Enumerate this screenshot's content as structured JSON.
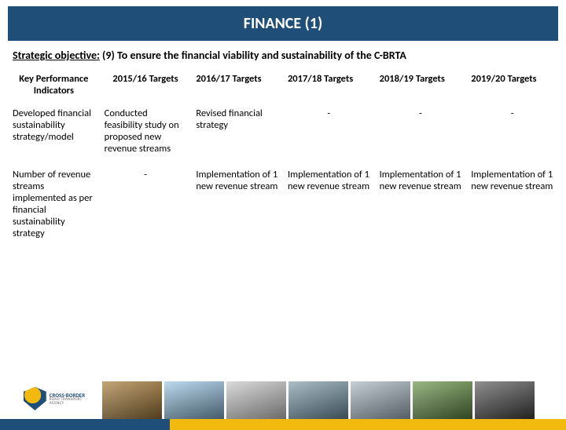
{
  "title": "FINANCE (1)",
  "objective_label": "Strategic objective:",
  "objective_text": "(9) To ensure the financial viability and sustainability of the C-BRTA",
  "colors": {
    "title_bg": "#1f4e79",
    "title_fg": "#ffffff",
    "stripe_blue": "#1f4e79",
    "stripe_gold": "#f2b90f"
  },
  "table": {
    "columns": [
      "Key Performance Indicators",
      "2015/16 Targets",
      "2016/17 Targets",
      "2017/18 Targets",
      "2018/19 Targets",
      "2019/20 Targets"
    ],
    "col_align": [
      "center",
      "center",
      "left",
      "left",
      "left",
      "left"
    ],
    "rows": [
      {
        "cells": [
          "Developed financial sustainability strategy/model",
          "Conducted feasibility study on proposed new revenue streams",
          "Revised financial strategy",
          "-",
          "-",
          "-"
        ],
        "dash_cols": [
          3,
          4,
          5
        ]
      },
      {
        "cells": [
          "Number of revenue streams implemented as per financial sustainability strategy",
          "-",
          "Implementation of 1 new revenue stream",
          "Implementation of 1 new revenue stream",
          "Implementation of 1 new revenue stream",
          "Implementation of 1 new revenue stream"
        ],
        "dash_cols": [
          1
        ]
      }
    ]
  },
  "logo": {
    "line1": "CROSS-BORDER",
    "line2": "ROAD TRANSPORT AGENCY"
  },
  "footer_thumb_count": 7
}
